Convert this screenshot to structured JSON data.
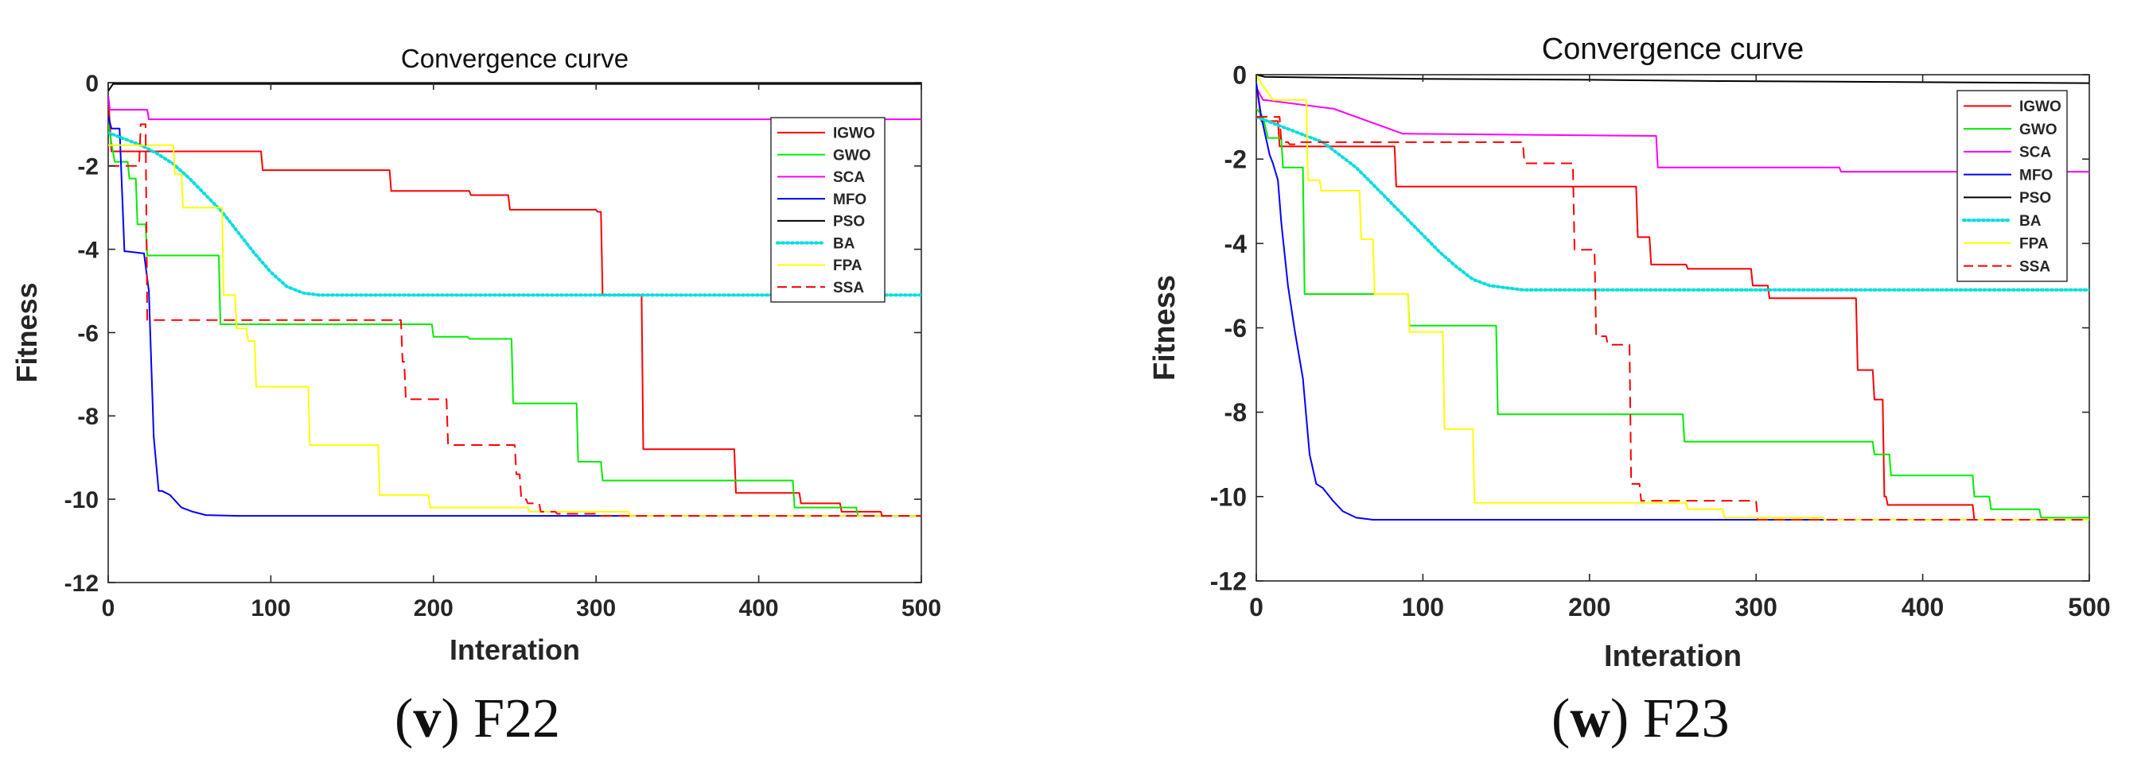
{
  "chart_data": [
    {
      "type": "line",
      "title": "Convergence curve",
      "xlabel": "Interation",
      "ylabel": "Fitness",
      "xlim": [
        0,
        500
      ],
      "ylim": [
        -12,
        0
      ],
      "xticks": [
        0,
        100,
        200,
        300,
        400,
        500
      ],
      "yticks": [
        0,
        -2,
        -4,
        -6,
        -8,
        -10,
        -12
      ],
      "legend_position": "top-right",
      "caption": {
        "label": "v",
        "text": "F22"
      },
      "series": [
        {
          "name": "IGWO",
          "color": "#ff0000",
          "dash": "solid",
          "x": [
            0,
            2,
            3,
            94,
            95,
            173,
            174,
            222,
            223,
            246,
            247,
            300,
            301,
            303,
            304,
            328,
            329,
            385,
            386,
            425,
            426,
            450,
            451,
            475,
            476,
            500
          ],
          "y": [
            -0.3,
            -1.65,
            -1.65,
            -1.65,
            -2.1,
            -2.1,
            -2.6,
            -2.6,
            -2.7,
            -2.7,
            -3.05,
            -3.05,
            -3.1,
            -3.1,
            -5.1,
            -5.1,
            -8.8,
            -8.8,
            -9.85,
            -9.85,
            -10.1,
            -10.1,
            -10.3,
            -10.3,
            -10.4,
            -10.4
          ]
        },
        {
          "name": "GWO",
          "color": "#00ee00",
          "dash": "solid",
          "x": [
            0,
            4,
            12,
            13,
            17,
            18,
            23,
            24,
            68,
            69,
            199,
            200,
            221,
            222,
            248,
            249,
            288,
            289,
            303,
            304,
            421,
            422,
            460,
            461,
            500
          ],
          "y": [
            -1.0,
            -1.9,
            -1.9,
            -2.3,
            -2.3,
            -3.4,
            -3.4,
            -4.15,
            -4.15,
            -5.8,
            -5.8,
            -6.1,
            -6.1,
            -6.15,
            -6.15,
            -7.7,
            -7.7,
            -9.1,
            -9.1,
            -9.55,
            -9.55,
            -10.2,
            -10.2,
            -10.4,
            -10.4
          ]
        },
        {
          "name": "SCA",
          "color": "#ff00ff",
          "dash": "solid",
          "x": [
            0,
            1,
            24,
            25,
            500
          ],
          "y": [
            -0.3,
            -0.65,
            -0.65,
            -0.88,
            -0.88
          ]
        },
        {
          "name": "MFO",
          "color": "#0000ff",
          "dash": "solid",
          "x": [
            0,
            2,
            7,
            10,
            11,
            22,
            25,
            28,
            31,
            33,
            38,
            45,
            52,
            60,
            80,
            200,
            350,
            500
          ],
          "y": [
            -0.8,
            -1.1,
            -1.1,
            -4.05,
            -4.05,
            -4.1,
            -5.0,
            -8.5,
            -9.8,
            -9.8,
            -9.9,
            -10.2,
            -10.3,
            -10.38,
            -10.4,
            -10.4,
            -10.4,
            -10.4
          ]
        },
        {
          "name": "PSO",
          "color": "#000000",
          "dash": "solid",
          "x": [
            0,
            3,
            40,
            100,
            500
          ],
          "y": [
            -0.2,
            -0.03,
            -0.03,
            -0.03,
            -0.03
          ]
        },
        {
          "name": "BA",
          "color": "#00dddd",
          "dash": "dotted",
          "x": [
            0,
            10,
            20,
            30,
            40,
            50,
            60,
            70,
            80,
            90,
            100,
            110,
            120,
            130,
            140,
            150,
            200,
            300,
            400,
            500
          ],
          "y": [
            -1.2,
            -1.35,
            -1.5,
            -1.7,
            -1.95,
            -2.3,
            -2.7,
            -3.1,
            -3.6,
            -4.1,
            -4.55,
            -4.9,
            -5.05,
            -5.1,
            -5.1,
            -5.1,
            -5.1,
            -5.1,
            -5.1,
            -5.1
          ]
        },
        {
          "name": "FPA",
          "color": "#ffff00",
          "dash": "solid",
          "x": [
            0,
            40,
            41,
            45,
            46,
            70,
            71,
            78,
            79,
            85,
            86,
            90,
            91,
            123,
            124,
            166,
            167,
            197,
            198,
            258,
            259,
            320,
            321,
            500
          ],
          "y": [
            -1.5,
            -1.5,
            -2.2,
            -2.2,
            -3.0,
            -3.0,
            -5.1,
            -5.1,
            -5.9,
            -5.9,
            -6.2,
            -6.2,
            -7.3,
            -7.3,
            -8.7,
            -8.7,
            -9.9,
            -9.9,
            -10.2,
            -10.2,
            -10.3,
            -10.3,
            -10.4,
            -10.4
          ]
        },
        {
          "name": "SSA",
          "color": "#ff0000",
          "dash": "dashed",
          "x": [
            0,
            5,
            19,
            20,
            23,
            24,
            180,
            181,
            182,
            183,
            208,
            209,
            250,
            251,
            253,
            254,
            257,
            258,
            265,
            266,
            275,
            276,
            300,
            301,
            500
          ],
          "y": [
            -2.0,
            -2.0,
            -2.0,
            -1.0,
            -1.0,
            -5.7,
            -5.7,
            -6.7,
            -6.7,
            -7.6,
            -7.6,
            -8.7,
            -8.7,
            -9.4,
            -9.4,
            -10.0,
            -10.0,
            -10.1,
            -10.1,
            -10.3,
            -10.3,
            -10.35,
            -10.35,
            -10.4,
            -10.4
          ]
        }
      ]
    },
    {
      "type": "line",
      "title": "Convergence curve",
      "xlabel": "Interation",
      "ylabel": "Fitness",
      "xlim": [
        0,
        500
      ],
      "ylim": [
        -12,
        0
      ],
      "xticks": [
        0,
        100,
        200,
        300,
        400,
        500
      ],
      "yticks": [
        0,
        -2,
        -4,
        -6,
        -8,
        -10,
        -12
      ],
      "legend_position": "top-right",
      "caption": {
        "label": "w",
        "text": "F23"
      },
      "series": [
        {
          "name": "IGWO",
          "color": "#ff0000",
          "dash": "solid",
          "x": [
            0,
            3,
            13,
            14,
            83,
            84,
            228,
            229,
            236,
            237,
            258,
            259,
            297,
            298,
            307,
            308,
            360,
            361,
            370,
            371,
            376,
            377,
            378,
            379,
            430,
            431,
            500
          ],
          "y": [
            -0.2,
            -1.1,
            -1.1,
            -1.7,
            -1.7,
            -2.65,
            -2.65,
            -3.85,
            -3.85,
            -4.5,
            -4.5,
            -4.6,
            -4.6,
            -5.0,
            -5.0,
            -5.3,
            -5.3,
            -7.0,
            -7.0,
            -7.7,
            -7.7,
            -10.0,
            -10.0,
            -10.2,
            -10.2,
            -10.55,
            -10.55
          ]
        },
        {
          "name": "GWO",
          "color": "#00ee00",
          "dash": "solid",
          "x": [
            0,
            4,
            7,
            15,
            16,
            28,
            29,
            91,
            92,
            144,
            145,
            256,
            257,
            370,
            371,
            380,
            381,
            430,
            431,
            440,
            441,
            470,
            471,
            500
          ],
          "y": [
            -0.8,
            -1.0,
            -1.5,
            -1.5,
            -2.2,
            -2.2,
            -5.2,
            -5.2,
            -5.95,
            -5.95,
            -8.05,
            -8.05,
            -8.7,
            -8.7,
            -9.0,
            -9.0,
            -9.5,
            -9.5,
            -10.0,
            -10.0,
            -10.3,
            -10.3,
            -10.5,
            -10.5
          ]
        },
        {
          "name": "SCA",
          "color": "#ff00ff",
          "dash": "solid",
          "x": [
            0,
            4,
            5,
            45,
            46,
            88,
            89,
            240,
            241,
            350,
            351,
            500
          ],
          "y": [
            -0.3,
            -0.6,
            -0.6,
            -0.8,
            -0.8,
            -1.4,
            -1.4,
            -1.45,
            -2.2,
            -2.2,
            -2.3,
            -2.3
          ]
        },
        {
          "name": "MFO",
          "color": "#0000ff",
          "dash": "solid",
          "x": [
            0,
            3,
            8,
            10,
            13,
            15,
            19,
            23,
            28,
            32,
            36,
            40,
            46,
            52,
            60,
            70,
            200,
            500
          ],
          "y": [
            -0.2,
            -1.0,
            -1.9,
            -2.1,
            -2.5,
            -3.5,
            -5.0,
            -6.05,
            -7.2,
            -9.0,
            -9.7,
            -9.8,
            -10.1,
            -10.35,
            -10.5,
            -10.55,
            -10.55,
            -10.55
          ]
        },
        {
          "name": "PSO",
          "color": "#000000",
          "dash": "solid",
          "x": [
            0,
            5,
            100,
            200,
            280,
            500
          ],
          "y": [
            0.0,
            -0.05,
            -0.1,
            -0.12,
            -0.15,
            -0.2
          ]
        },
        {
          "name": "BA",
          "color": "#00dddd",
          "dash": "dotted",
          "x": [
            0,
            10,
            20,
            30,
            40,
            50,
            60,
            70,
            80,
            90,
            100,
            110,
            120,
            130,
            140,
            150,
            160,
            200,
            300,
            400,
            500
          ],
          "y": [
            -1.0,
            -1.15,
            -1.3,
            -1.45,
            -1.6,
            -1.9,
            -2.2,
            -2.6,
            -3.0,
            -3.4,
            -3.8,
            -4.2,
            -4.55,
            -4.85,
            -5.0,
            -5.05,
            -5.1,
            -5.1,
            -5.1,
            -5.1,
            -5.1
          ]
        },
        {
          "name": "FPA",
          "color": "#ffff00",
          "dash": "solid",
          "x": [
            0,
            3,
            10,
            30,
            31,
            38,
            39,
            62,
            63,
            70,
            71,
            91,
            92,
            112,
            113,
            130,
            131,
            160,
            161,
            258,
            259,
            280,
            281,
            340,
            341,
            500
          ],
          "y": [
            0.0,
            -0.2,
            -0.6,
            -0.6,
            -2.5,
            -2.5,
            -2.75,
            -2.75,
            -3.9,
            -3.9,
            -5.2,
            -5.2,
            -6.1,
            -6.1,
            -8.4,
            -8.4,
            -10.15,
            -10.15,
            -10.15,
            -10.15,
            -10.3,
            -10.3,
            -10.5,
            -10.5,
            -10.55,
            -10.55
          ]
        },
        {
          "name": "SSA",
          "color": "#ff0000",
          "dash": "dashed",
          "x": [
            0,
            5,
            14,
            15,
            19,
            20,
            24,
            25,
            160,
            161,
            190,
            191,
            203,
            204,
            210,
            211,
            224,
            225,
            230,
            231,
            300,
            301,
            500
          ],
          "y": [
            -1.0,
            -1.0,
            -1.0,
            -1.6,
            -1.6,
            -1.65,
            -1.65,
            -1.6,
            -1.6,
            -2.1,
            -2.1,
            -4.15,
            -4.15,
            -6.2,
            -6.2,
            -6.4,
            -6.4,
            -9.7,
            -9.7,
            -10.1,
            -10.1,
            -10.55,
            -10.55
          ]
        }
      ]
    }
  ]
}
